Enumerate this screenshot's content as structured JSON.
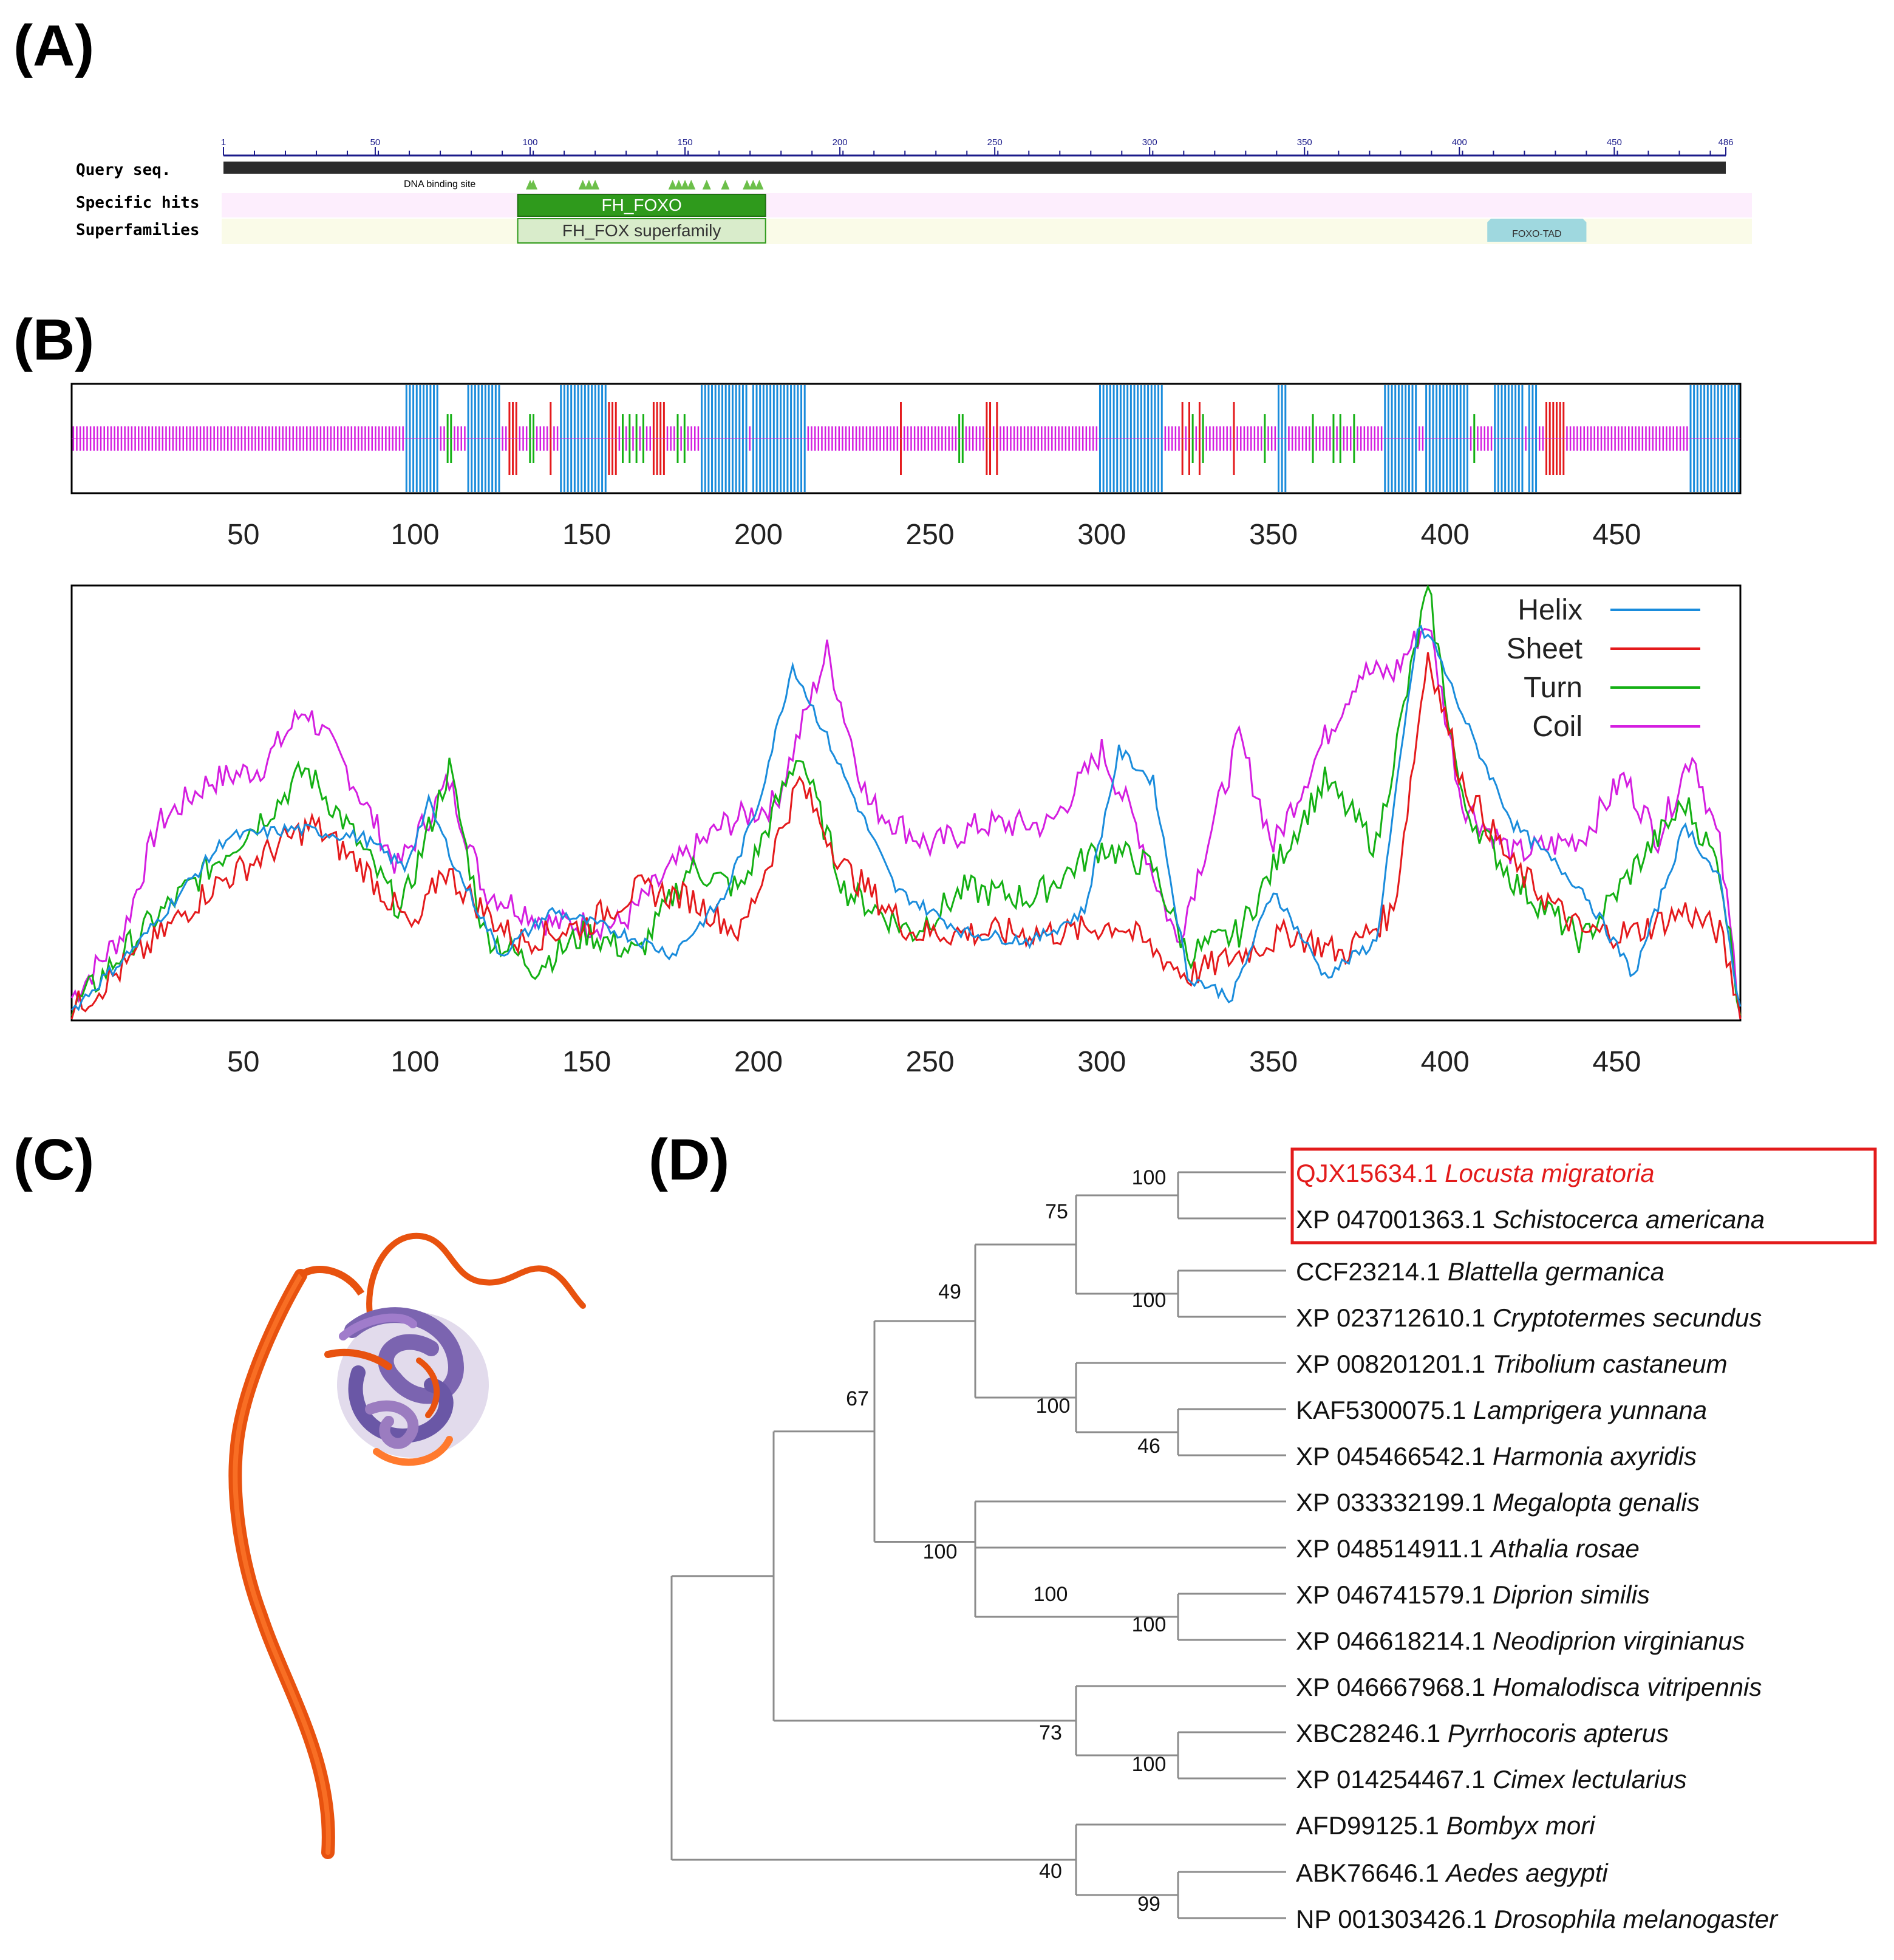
{
  "panels": {
    "a": "(A)",
    "b": "(B)",
    "c": "(C)",
    "d": "(D)"
  },
  "panel_a": {
    "track_labels": [
      "Query seq.",
      "Specific hits",
      "Superfamilies"
    ],
    "ruler_ticks": [
      "1",
      "50",
      "100",
      "150",
      "200",
      "250",
      "300",
      "350",
      "400",
      "450",
      "486"
    ],
    "ruler_max": 486,
    "site_label": "DNA binding site",
    "specific_hit": "FH_FOXO",
    "superfamily": "FH_FOX superfamily",
    "tad": "FOXO-TAD",
    "colors": {
      "specific": "#2f9a1c",
      "superfamily": "#d9eccb",
      "tad": "#9fd8df",
      "track_pink": "#fdeefd",
      "track_yellow": "#fafbe8"
    }
  },
  "panel_b": {
    "top_ticks": [
      "50",
      "100",
      "150",
      "200",
      "250",
      "300",
      "350",
      "400",
      "450"
    ],
    "bottom_ticks": [
      "50",
      "100",
      "150",
      "200",
      "250",
      "300",
      "350",
      "400",
      "450"
    ],
    "x_max": 486,
    "legend": [
      {
        "name": "Helix",
        "color": "#1a8cdc"
      },
      {
        "name": "Sheet",
        "color": "#e41a1c"
      },
      {
        "name": "Turn",
        "color": "#14b014"
      },
      {
        "name": "Coil",
        "color": "#d41ee0"
      }
    ],
    "helix_regions": [
      [
        98,
        107
      ],
      [
        116,
        125
      ],
      [
        143,
        156
      ],
      [
        184,
        197
      ],
      [
        199,
        214
      ],
      [
        300,
        318
      ],
      [
        352,
        354
      ],
      [
        383,
        392
      ],
      [
        395,
        407
      ],
      [
        415,
        423
      ],
      [
        425,
        427
      ],
      [
        472,
        486
      ]
    ]
  },
  "panel_d": {
    "taxa": [
      {
        "acc": "QJX15634.1",
        "species": "Locusta migratoria"
      },
      {
        "acc": "XP 047001363.1",
        "species": "Schistocerca americana"
      },
      {
        "acc": "CCF23214.1",
        "species": "Blattella germanica"
      },
      {
        "acc": "XP 023712610.1",
        "species": "Cryptotermes secundus"
      },
      {
        "acc": "XP 008201201.1",
        "species": "Tribolium castaneum"
      },
      {
        "acc": "KAF5300075.1",
        "species": "Lamprigera yunnana"
      },
      {
        "acc": "XP 045466542.1",
        "species": "Harmonia axyridis"
      },
      {
        "acc": "XP 033332199.1",
        "species": "Megalopta genalis"
      },
      {
        "acc": "XP 048514911.1",
        "species": "Athalia rosae"
      },
      {
        "acc": "XP 046741579.1",
        "species": "Diprion similis"
      },
      {
        "acc": "XP 046618214.1",
        "species": "Neodiprion virginianus"
      },
      {
        "acc": "XP 046667968.1",
        "species": "Homalodisca vitripennis"
      },
      {
        "acc": "XBC28246.1",
        "species": "Pyrrhocoris apterus"
      },
      {
        "acc": "XP 014254467.1",
        "species": "Cimex lectularius"
      },
      {
        "acc": "AFD99125.1",
        "species": "Bombyx mori"
      },
      {
        "acc": "ABK76646.1",
        "species": "Aedes aegypti"
      },
      {
        "acc": "NP 001303426.1",
        "species": "Drosophila melanogaster"
      }
    ],
    "bootstrap": [
      "100",
      "75",
      "49",
      "100",
      "100",
      "46",
      "67",
      "100",
      "100",
      "100",
      "73",
      "100",
      "40",
      "99"
    ],
    "highlight_color": "#e31b1b"
  }
}
